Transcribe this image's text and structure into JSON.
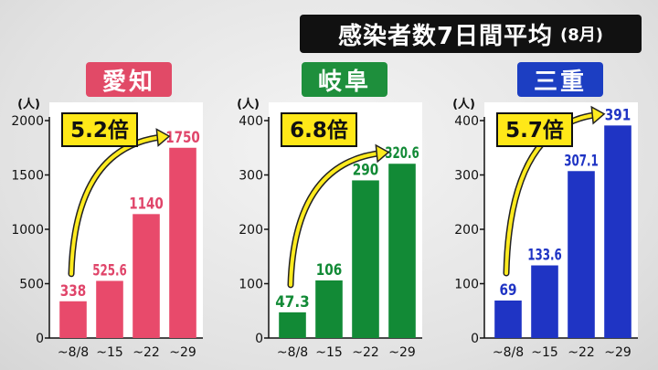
{
  "title": {
    "main": "感染者数7日間平均",
    "sub": "(8月)"
  },
  "chart_data": [
    {
      "type": "bar",
      "title": "愛知",
      "title_bg": "#e14a67",
      "color": "#e84a6b",
      "label_color": "#e0456a",
      "unit": "(人)",
      "categories": [
        "~8/8",
        "~15",
        "~22",
        "~29"
      ],
      "values": [
        338,
        525.6,
        1140,
        1750
      ],
      "value_labels": [
        "338",
        "525.6",
        "1140",
        "1750"
      ],
      "ylim": [
        0,
        2000
      ],
      "yticks": [
        0,
        500,
        1000,
        1500,
        2000
      ],
      "multiplier": "5.2倍"
    },
    {
      "type": "bar",
      "title": "岐阜",
      "title_bg": "#1e8f3c",
      "color": "#128a36",
      "label_color": "#128a36",
      "unit": "(人)",
      "categories": [
        "~8/8",
        "~15",
        "~22",
        "~29"
      ],
      "values": [
        47.3,
        106,
        290,
        320.6
      ],
      "value_labels": [
        "47.3",
        "106",
        "290",
        "320.6"
      ],
      "ylim": [
        0,
        400
      ],
      "yticks": [
        0,
        100,
        200,
        300,
        400
      ],
      "multiplier": "6.8倍"
    },
    {
      "type": "bar",
      "title": "三重",
      "title_bg": "#1c3ec2",
      "color": "#1f34c4",
      "label_color": "#1f34c4",
      "unit": "(人)",
      "categories": [
        "~8/8",
        "~15",
        "~22",
        "~29"
      ],
      "values": [
        69,
        133.6,
        307.1,
        391
      ],
      "value_labels": [
        "69",
        "133.6",
        "307.1",
        "391"
      ],
      "ylim": [
        0,
        400
      ],
      "yticks": [
        0,
        100,
        200,
        300,
        400
      ],
      "multiplier": "5.7倍"
    }
  ]
}
